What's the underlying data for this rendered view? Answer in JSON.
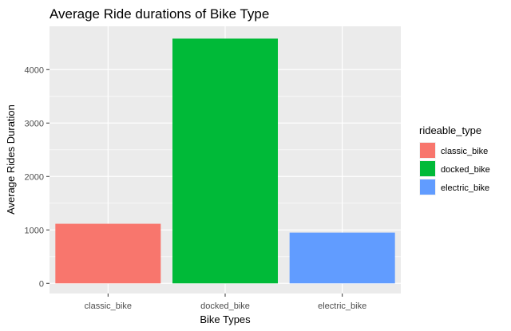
{
  "chart_data": {
    "type": "bar",
    "title": "Average Ride durations of Bike Type",
    "xlabel": "Bike Types",
    "ylabel": "Average Rides Duration",
    "categories": [
      "classic_bike",
      "docked_bike",
      "electric_bike"
    ],
    "values": [
      1115,
      4580,
      950
    ],
    "colors": [
      "#F8766D",
      "#00BA38",
      "#619CFF"
    ],
    "ylim": [
      -190,
      4810
    ],
    "yticks": [
      0,
      1000,
      2000,
      3000,
      4000
    ],
    "ytick_labels": [
      "0",
      "1000",
      "2000",
      "3000",
      "4000"
    ],
    "grid": true,
    "panel_background": "#EBEBEB",
    "legend": {
      "title": "rideable_type",
      "position": "right",
      "entries": [
        "classic_bike",
        "docked_bike",
        "electric_bike"
      ]
    }
  }
}
